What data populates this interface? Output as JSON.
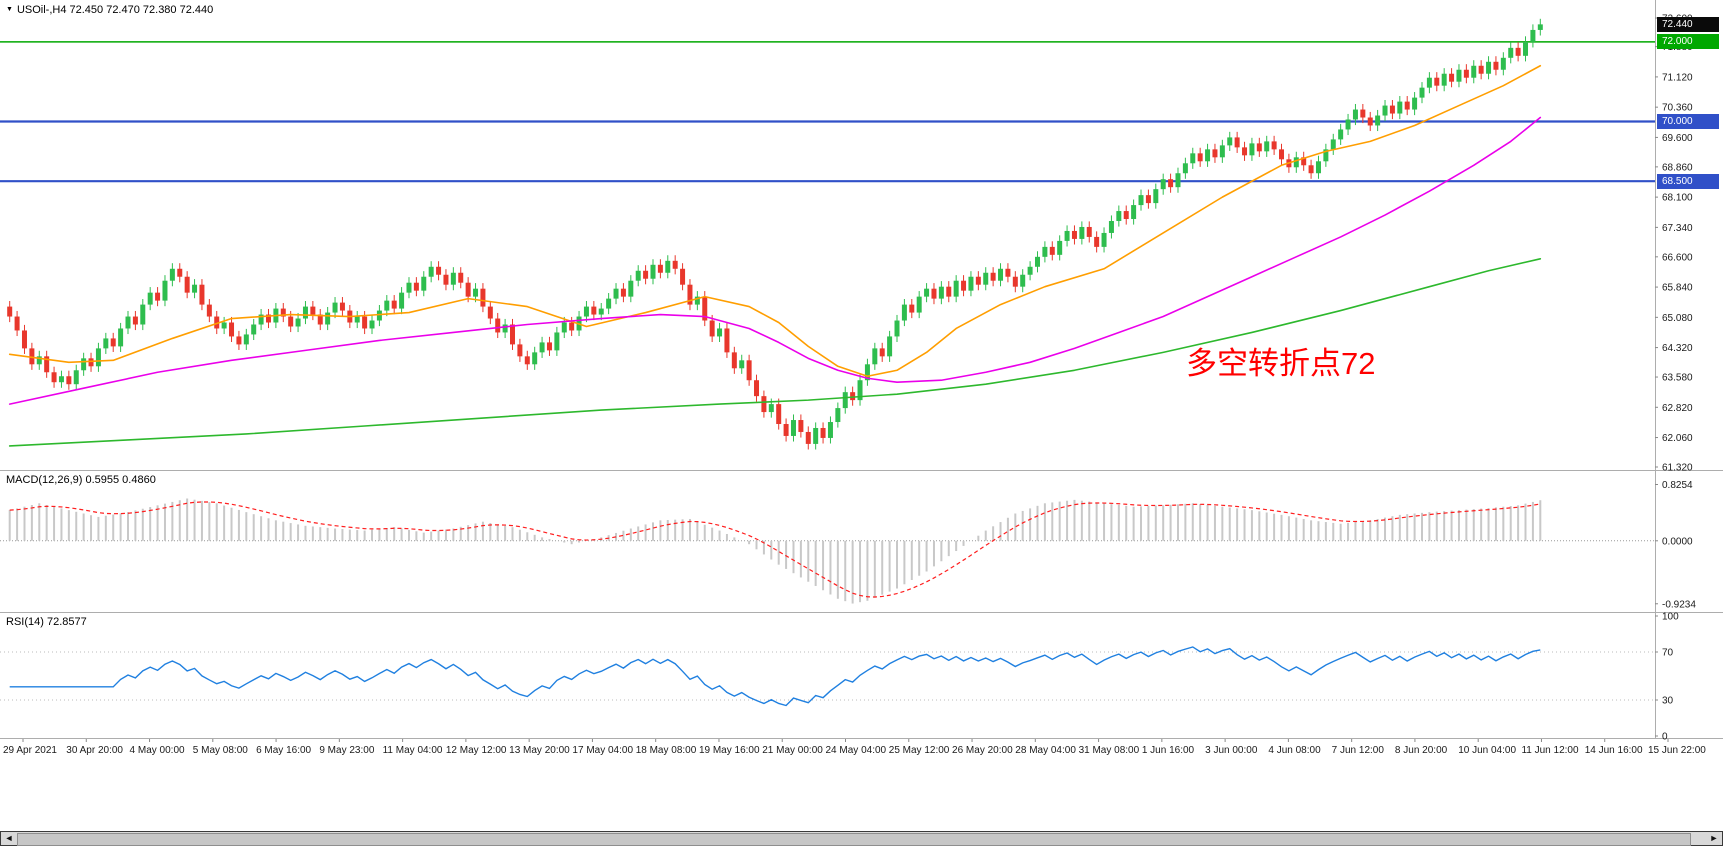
{
  "header": {
    "dropdown_arrow": "▼",
    "title": "USOil-,H4 72.450 72.470 72.380 72.440"
  },
  "indicators": {
    "macd_label": "MACD(12,26,9) 0.5955 0.4860",
    "rsi_label": "RSI(14) 72.8577"
  },
  "annotation": {
    "text": "多空转折点72",
    "color": "#FF0000"
  },
  "price_tags": {
    "current": {
      "text": "72.440",
      "price": 72.44,
      "bg": "#0a0a0a"
    },
    "green_line": {
      "text": "72.000",
      "price": 72.0,
      "bg": "#00A800"
    },
    "blue_upper": {
      "text": "70.000",
      "price": 70.0,
      "bg": "#3050C8"
    },
    "blue_lower": {
      "text": "68.500",
      "price": 68.5,
      "bg": "#3050C8"
    }
  },
  "axes": {
    "price_labels": [
      "72.600",
      "71.880",
      "71.120",
      "70.360",
      "69.600",
      "68.860",
      "68.100",
      "67.340",
      "66.600",
      "65.840",
      "65.080",
      "64.320",
      "63.580",
      "62.820",
      "62.060",
      "61.320"
    ],
    "macd_labels": [
      {
        "text": "0.8254",
        "v": 0.8254
      },
      {
        "text": "0.0000",
        "v": 0
      },
      {
        "text": "-0.9234",
        "v": -0.9234
      }
    ],
    "rsi_labels": [
      {
        "text": "100",
        "v": 100
      },
      {
        "text": "70",
        "v": 70
      },
      {
        "text": "30",
        "v": 30
      },
      {
        "text": "0",
        "v": 0
      }
    ],
    "date_labels": [
      "29 Apr 2021",
      "30 Apr 20:00",
      "4 May 00:00",
      "5 May 08:00",
      "6 May 16:00",
      "9 May 23:00",
      "11 May 04:00",
      "12 May 12:00",
      "13 May 20:00",
      "17 May 04:00",
      "18 May 08:00",
      "19 May 16:00",
      "21 May 00:00",
      "24 May 04:00",
      "25 May 12:00",
      "26 May 20:00",
      "28 May 04:00",
      "31 May 08:00",
      "1 Jun 16:00",
      "3 Jun 00:00",
      "4 Jun 08:00",
      "7 Jun 12:00",
      "8 Jun 20:00",
      "10 Jun 04:00",
      "11 Jun 12:00",
      "14 Jun 16:00",
      "15 Jun 22:00"
    ]
  },
  "scrollbar": {
    "left_arrow": "◄",
    "right_arrow": "►"
  },
  "chart_data": {
    "type": "candlestick",
    "instrument": "USOil-",
    "timeframe": "H4",
    "ohlc_current": {
      "open": 72.45,
      "high": 72.47,
      "low": 72.38,
      "close": 72.44
    },
    "price_range": [
      61.32,
      72.6
    ],
    "up_color": "#2EBD4E",
    "down_color": "#E8372C",
    "wick": 0.14,
    "first_open": 65.35,
    "closes": [
      65.1,
      64.75,
      64.3,
      63.9,
      64.1,
      63.7,
      63.45,
      63.6,
      63.4,
      63.75,
      64.05,
      63.85,
      64.3,
      64.55,
      64.35,
      64.8,
      65.1,
      64.9,
      65.4,
      65.7,
      65.5,
      66.0,
      66.3,
      66.1,
      65.7,
      65.9,
      65.4,
      65.1,
      64.8,
      64.95,
      64.6,
      64.4,
      64.65,
      64.9,
      65.15,
      64.95,
      65.3,
      65.1,
      64.85,
      65.05,
      65.35,
      65.15,
      64.9,
      65.2,
      65.45,
      65.25,
      64.95,
      65.1,
      64.8,
      65.0,
      65.25,
      65.5,
      65.3,
      65.7,
      65.95,
      65.75,
      66.1,
      66.35,
      66.15,
      65.9,
      66.2,
      65.95,
      65.6,
      65.8,
      65.35,
      65.05,
      64.7,
      64.9,
      64.4,
      64.1,
      63.9,
      64.2,
      64.45,
      64.25,
      64.7,
      64.95,
      64.75,
      65.1,
      65.35,
      65.15,
      65.3,
      65.55,
      65.8,
      65.6,
      66.0,
      66.25,
      66.05,
      66.4,
      66.2,
      66.5,
      66.3,
      65.9,
      65.4,
      65.6,
      65.0,
      64.6,
      64.8,
      64.2,
      63.8,
      64.0,
      63.5,
      63.1,
      62.7,
      62.9,
      62.4,
      62.1,
      62.5,
      62.2,
      61.9,
      62.3,
      62.05,
      62.45,
      62.8,
      63.2,
      63.0,
      63.5,
      63.9,
      64.3,
      64.1,
      64.6,
      65.0,
      65.4,
      65.2,
      65.6,
      65.8,
      65.55,
      65.85,
      65.6,
      66.0,
      65.75,
      66.1,
      65.9,
      66.2,
      66.0,
      66.3,
      66.1,
      65.85,
      66.15,
      66.35,
      66.6,
      66.85,
      66.65,
      67.0,
      67.25,
      67.05,
      67.35,
      67.1,
      66.85,
      67.2,
      67.5,
      67.75,
      67.55,
      67.9,
      68.15,
      67.95,
      68.3,
      68.55,
      68.35,
      68.7,
      68.95,
      69.2,
      69.0,
      69.3,
      69.1,
      69.4,
      69.6,
      69.35,
      69.15,
      69.45,
      69.25,
      69.5,
      69.3,
      69.05,
      68.85,
      69.1,
      68.9,
      68.7,
      69.0,
      69.3,
      69.55,
      69.8,
      70.05,
      70.3,
      70.1,
      69.9,
      70.15,
      70.4,
      70.2,
      70.5,
      70.3,
      70.6,
      70.85,
      71.1,
      70.9,
      71.2,
      71.0,
      71.3,
      71.1,
      71.4,
      71.2,
      71.5,
      71.3,
      71.6,
      71.85,
      71.65,
      72.0,
      72.3,
      72.44
    ],
    "hlines": [
      {
        "price": 72.0,
        "color": "#00A800",
        "width": 1.6
      },
      {
        "price": 70.0,
        "color": "#3050C8",
        "width": 2.2
      },
      {
        "price": 68.5,
        "color": "#3050C8",
        "width": 2.2
      }
    ],
    "ma_lines": [
      {
        "name": "fast-ma-orange",
        "color": "#FF9E00",
        "points": [
          [
            0,
            64.15
          ],
          [
            8,
            63.95
          ],
          [
            14,
            64.0
          ],
          [
            22,
            64.55
          ],
          [
            30,
            65.05
          ],
          [
            38,
            65.15
          ],
          [
            46,
            65.1
          ],
          [
            54,
            65.2
          ],
          [
            62,
            65.55
          ],
          [
            70,
            65.35
          ],
          [
            78,
            64.85
          ],
          [
            86,
            65.2
          ],
          [
            94,
            65.6
          ],
          [
            100,
            65.35
          ],
          [
            104,
            64.95
          ],
          [
            108,
            64.35
          ],
          [
            112,
            63.85
          ],
          [
            116,
            63.6
          ],
          [
            120,
            63.75
          ],
          [
            124,
            64.2
          ],
          [
            128,
            64.8
          ],
          [
            134,
            65.4
          ],
          [
            140,
            65.85
          ],
          [
            148,
            66.3
          ],
          [
            156,
            67.2
          ],
          [
            164,
            68.1
          ],
          [
            172,
            68.9
          ],
          [
            178,
            69.25
          ],
          [
            184,
            69.5
          ],
          [
            190,
            69.9
          ],
          [
            196,
            70.4
          ],
          [
            202,
            70.9
          ],
          [
            207,
            71.4
          ]
        ]
      },
      {
        "name": "mid-ma-magenta",
        "color": "#EA00EA",
        "points": [
          [
            0,
            62.9
          ],
          [
            10,
            63.3
          ],
          [
            20,
            63.7
          ],
          [
            30,
            64.0
          ],
          [
            40,
            64.25
          ],
          [
            50,
            64.5
          ],
          [
            60,
            64.7
          ],
          [
            70,
            64.9
          ],
          [
            80,
            65.05
          ],
          [
            88,
            65.15
          ],
          [
            94,
            65.1
          ],
          [
            100,
            64.8
          ],
          [
            104,
            64.45
          ],
          [
            108,
            64.05
          ],
          [
            112,
            63.75
          ],
          [
            116,
            63.55
          ],
          [
            120,
            63.45
          ],
          [
            126,
            63.5
          ],
          [
            132,
            63.7
          ],
          [
            138,
            63.95
          ],
          [
            144,
            64.3
          ],
          [
            150,
            64.7
          ],
          [
            156,
            65.1
          ],
          [
            162,
            65.6
          ],
          [
            168,
            66.1
          ],
          [
            174,
            66.6
          ],
          [
            180,
            67.1
          ],
          [
            186,
            67.65
          ],
          [
            192,
            68.25
          ],
          [
            198,
            68.9
          ],
          [
            203,
            69.5
          ],
          [
            207,
            70.1
          ]
        ]
      },
      {
        "name": "slow-ma-green",
        "color": "#2DB82D",
        "points": [
          [
            0,
            61.85
          ],
          [
            16,
            62.0
          ],
          [
            32,
            62.15
          ],
          [
            48,
            62.35
          ],
          [
            64,
            62.55
          ],
          [
            80,
            62.75
          ],
          [
            96,
            62.9
          ],
          [
            108,
            63.0
          ],
          [
            120,
            63.15
          ],
          [
            132,
            63.4
          ],
          [
            144,
            63.75
          ],
          [
            156,
            64.2
          ],
          [
            168,
            64.7
          ],
          [
            180,
            65.25
          ],
          [
            192,
            65.85
          ],
          [
            200,
            66.25
          ],
          [
            207,
            66.55
          ]
        ]
      }
    ],
    "macd": {
      "macd_value": 0.5955,
      "signal_value": 0.486,
      "range": [
        -1.0,
        0.95
      ],
      "hist_color": "#C8C8C8",
      "signal_color": "#FF1E1E",
      "hist_anchors": [
        [
          0,
          0.45
        ],
        [
          4,
          0.55
        ],
        [
          8,
          0.45
        ],
        [
          12,
          0.35
        ],
        [
          16,
          0.42
        ],
        [
          20,
          0.52
        ],
        [
          24,
          0.62
        ],
        [
          28,
          0.55
        ],
        [
          32,
          0.42
        ],
        [
          36,
          0.3
        ],
        [
          40,
          0.22
        ],
        [
          44,
          0.18
        ],
        [
          48,
          0.15
        ],
        [
          52,
          0.2
        ],
        [
          56,
          0.12
        ],
        [
          60,
          0.18
        ],
        [
          64,
          0.28
        ],
        [
          68,
          0.2
        ],
        [
          72,
          0.05
        ],
        [
          76,
          -0.05
        ],
        [
          80,
          0.05
        ],
        [
          84,
          0.18
        ],
        [
          88,
          0.3
        ],
        [
          92,
          0.32
        ],
        [
          96,
          0.15
        ],
        [
          100,
          -0.05
        ],
        [
          104,
          -0.35
        ],
        [
          108,
          -0.6
        ],
        [
          112,
          -0.85
        ],
        [
          114,
          -0.92
        ],
        [
          116,
          -0.88
        ],
        [
          120,
          -0.7
        ],
        [
          124,
          -0.45
        ],
        [
          128,
          -0.15
        ],
        [
          132,
          0.15
        ],
        [
          136,
          0.4
        ],
        [
          140,
          0.55
        ],
        [
          144,
          0.6
        ],
        [
          148,
          0.55
        ],
        [
          152,
          0.5
        ],
        [
          156,
          0.52
        ],
        [
          160,
          0.55
        ],
        [
          164,
          0.5
        ],
        [
          168,
          0.45
        ],
        [
          172,
          0.38
        ],
        [
          176,
          0.3
        ],
        [
          180,
          0.25
        ],
        [
          184,
          0.3
        ],
        [
          188,
          0.38
        ],
        [
          192,
          0.42
        ],
        [
          196,
          0.45
        ],
        [
          200,
          0.48
        ],
        [
          204,
          0.52
        ],
        [
          207,
          0.595
        ]
      ]
    },
    "rsi": {
      "value": 72.8577,
      "period": 14,
      "range": [
        0,
        100
      ],
      "levels": [
        70,
        30
      ],
      "color": "#2080E0"
    }
  }
}
